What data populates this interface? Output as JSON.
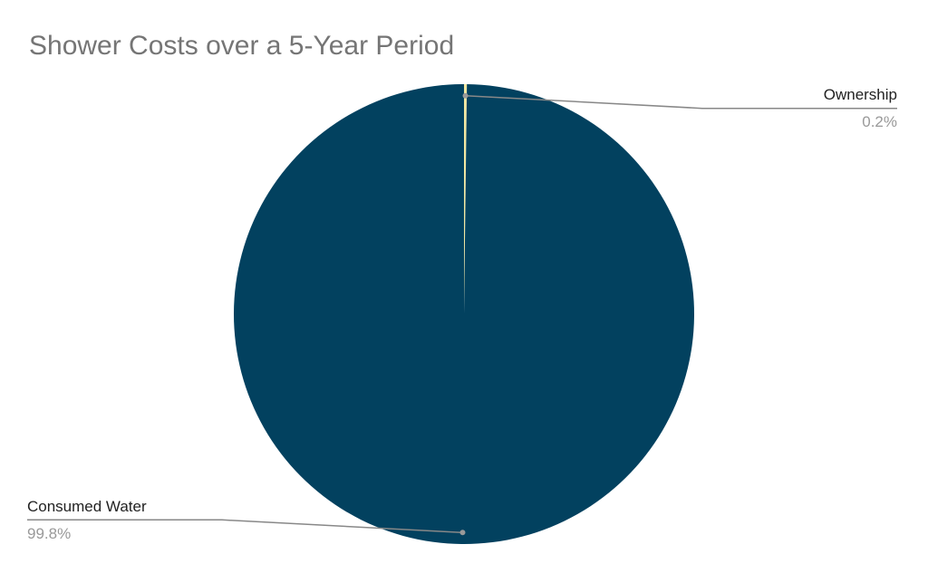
{
  "chart_data": {
    "type": "pie",
    "title": "Shower Costs over a 5-Year Period",
    "categories": [
      "Ownership",
      "Consumed Water"
    ],
    "values": [
      0.2,
      99.8
    ],
    "value_labels": [
      "0.2%",
      "99.8%"
    ],
    "colors": [
      "#f2e7a1",
      "#02415f"
    ]
  }
}
